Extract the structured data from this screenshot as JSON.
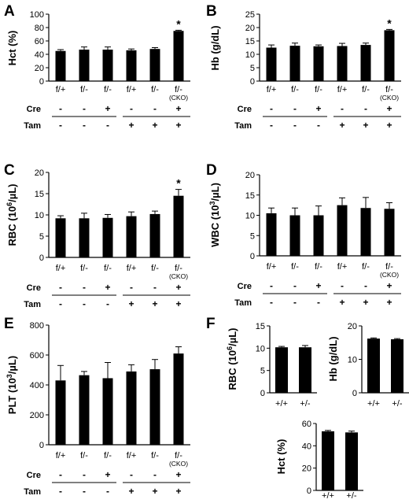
{
  "figure": {
    "row_labels": {
      "cre": "Cre",
      "tam": "Tam"
    },
    "cre_signs": [
      "-",
      "-",
      "+",
      "-",
      "-",
      "+"
    ],
    "tam_signs": [
      "-",
      "-",
      "-",
      "+",
      "+",
      "+"
    ],
    "significance_marker": "*"
  },
  "chart_data": [
    {
      "panel": "A",
      "type": "bar",
      "ylabel": "Hct (%)",
      "ylim": [
        0,
        100
      ],
      "yticks": [
        0,
        20,
        40,
        60,
        80,
        100
      ],
      "categories": [
        "f/+",
        "f/-",
        "f/-",
        "f/+",
        "f/-",
        "f/-"
      ],
      "last_category_note": "(CKO)",
      "values": [
        45,
        47,
        47,
        46,
        48,
        75
      ],
      "errors": [
        2,
        4,
        4,
        2,
        2,
        1
      ],
      "significant": [
        false,
        false,
        false,
        false,
        false,
        true
      ]
    },
    {
      "panel": "B",
      "type": "bar",
      "ylabel": "Hb (g/dL)",
      "ylim": [
        0,
        25
      ],
      "yticks": [
        0,
        5,
        10,
        15,
        20,
        25
      ],
      "categories": [
        "f/+",
        "f/-",
        "f/-",
        "f/+",
        "f/-",
        "f/-"
      ],
      "last_category_note": "(CKO)",
      "values": [
        12.5,
        13.2,
        13.0,
        13.1,
        13.5,
        19.0
      ],
      "errors": [
        1.0,
        1.0,
        0.5,
        1.0,
        0.7,
        0.3
      ],
      "significant": [
        false,
        false,
        false,
        false,
        false,
        true
      ]
    },
    {
      "panel": "C",
      "type": "bar",
      "ylabel": "RBC (10^6/µL)",
      "ylabel_base": "RBC (10",
      "ylabel_sup": "6",
      "ylabel_unit": "/µL)",
      "ylim": [
        0,
        20
      ],
      "yticks": [
        0,
        5,
        10,
        15,
        20
      ],
      "categories": [
        "f/+",
        "f/-",
        "f/-",
        "f/+",
        "f/-",
        "f/-"
      ],
      "last_category_note": "(CKO)",
      "values": [
        9.2,
        9.2,
        9.3,
        9.7,
        10.2,
        14.5
      ],
      "errors": [
        0.6,
        1.2,
        0.8,
        1.0,
        0.7,
        1.5
      ],
      "significant": [
        false,
        false,
        false,
        false,
        false,
        true
      ]
    },
    {
      "panel": "D",
      "type": "bar",
      "ylabel": "WBC (10^3/µL)",
      "ylabel_base": "WBC (10",
      "ylabel_sup": "3",
      "ylabel_unit": "/µL)",
      "ylim": [
        0,
        20
      ],
      "yticks": [
        0,
        5,
        10,
        15,
        20
      ],
      "categories": [
        "f/+",
        "f/-",
        "f/-",
        "f/+",
        "f/-",
        "f/-"
      ],
      "last_category_note": "(CKO)",
      "values": [
        10.5,
        10.0,
        10.0,
        12.5,
        11.8,
        11.6
      ],
      "errors": [
        1.3,
        1.8,
        2.3,
        1.8,
        2.6,
        1.5
      ],
      "significant": [
        false,
        false,
        false,
        false,
        false,
        false
      ]
    },
    {
      "panel": "E",
      "type": "bar",
      "ylabel": "PLT (10^3/µL)",
      "ylabel_base": "PLT (10",
      "ylabel_sup": "3",
      "ylabel_unit": "/µL)",
      "ylim": [
        0,
        800
      ],
      "yticks": [
        0,
        200,
        400,
        600,
        800
      ],
      "categories": [
        "f/+",
        "f/-",
        "f/-",
        "f/+",
        "f/-",
        "f/-"
      ],
      "last_category_note": "(CKO)",
      "values": [
        430,
        465,
        445,
        490,
        505,
        610
      ],
      "errors": [
        100,
        25,
        105,
        45,
        65,
        45
      ],
      "significant": [
        false,
        false,
        false,
        false,
        false,
        false
      ]
    },
    {
      "panel": "F",
      "type": "bar",
      "ylabel": "RBC (10^6/µL)",
      "ylabel_base": "RBC (10",
      "ylabel_sup": "6",
      "ylabel_unit": "/µL)",
      "ylim": [
        0,
        15
      ],
      "yticks": [
        0,
        5,
        10,
        15
      ],
      "categories": [
        "+/+",
        "+/-"
      ],
      "values": [
        10.2,
        10.2
      ],
      "errors": [
        0.2,
        0.4
      ]
    },
    {
      "type": "bar",
      "ylabel": "Hb (g/dL)",
      "ylim": [
        0,
        20
      ],
      "yticks": [
        0,
        10,
        20
      ],
      "categories": [
        "+/+",
        "+/-"
      ],
      "values": [
        16.2,
        16.0
      ],
      "errors": [
        0.2,
        0.2
      ]
    },
    {
      "type": "bar",
      "ylabel": "Hct (%)",
      "ylim": [
        0,
        60
      ],
      "yticks": [
        0,
        20,
        40,
        60
      ],
      "categories": [
        "+/+",
        "+/-"
      ],
      "values": [
        53,
        52
      ],
      "errors": [
        0.8,
        1.2
      ]
    }
  ]
}
